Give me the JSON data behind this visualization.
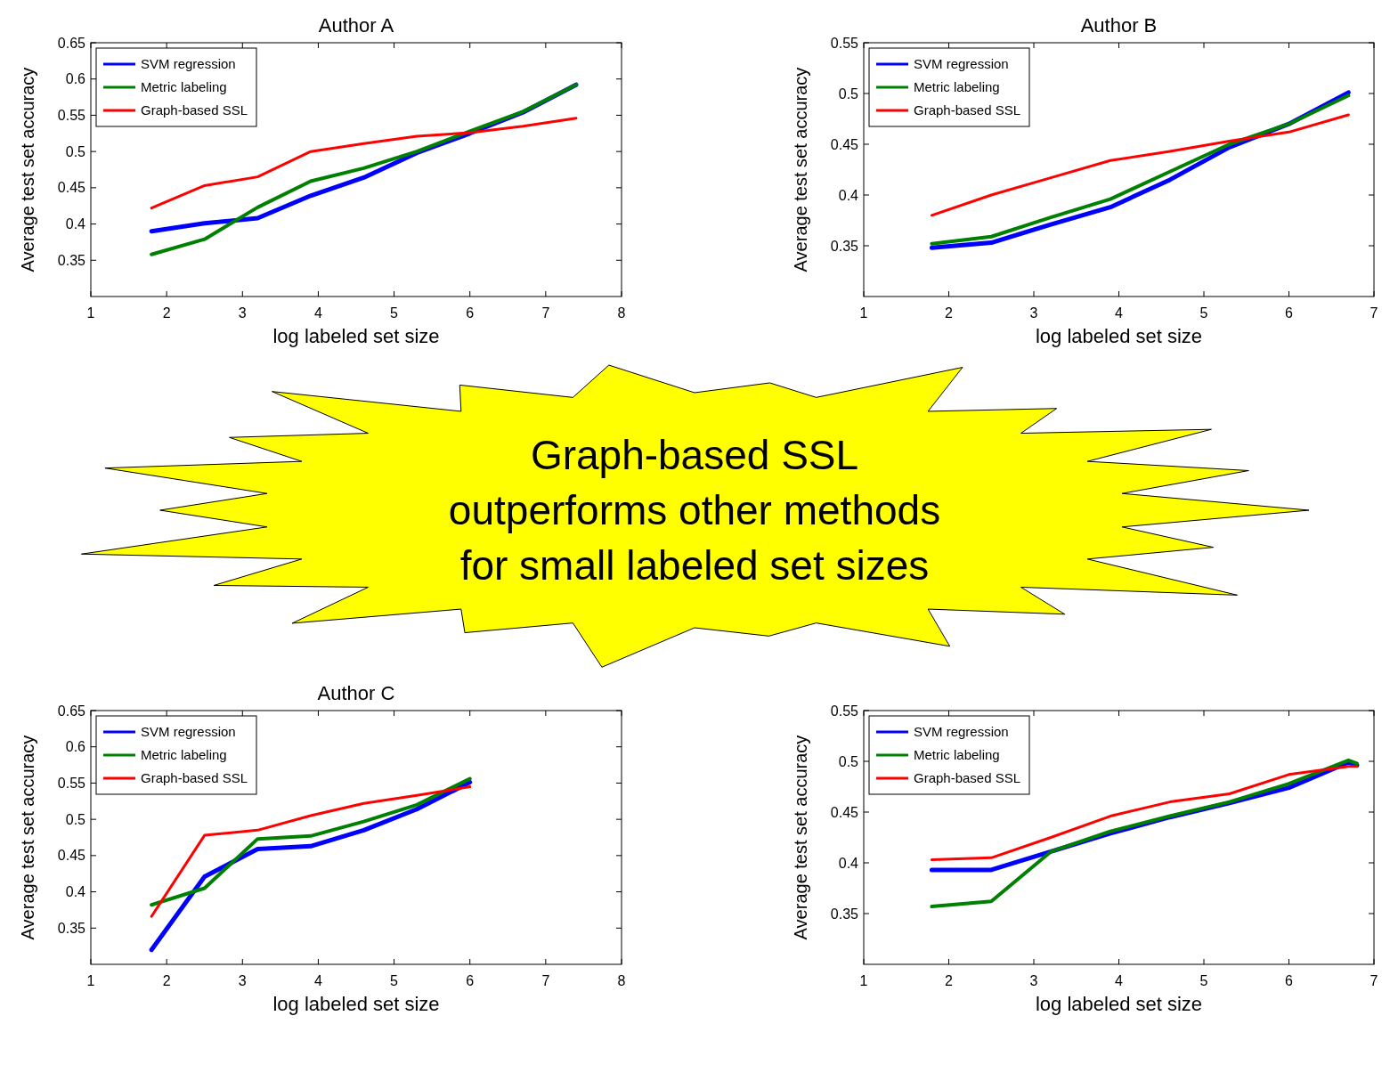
{
  "chart_data": [
    {
      "type": "line",
      "title": "Author A",
      "xlabel": "log labeled set size",
      "ylabel": "Average test set accuracy",
      "x": [
        1.8,
        2.5,
        3.2,
        3.9,
        4.6,
        5.3,
        6.0,
        6.7,
        7.4
      ],
      "xlim": [
        1,
        8
      ],
      "xticks": [
        1,
        2,
        3,
        4,
        5,
        6,
        7,
        8
      ],
      "ylim": [
        0.3,
        0.65
      ],
      "yticks": [
        0.35,
        0.4,
        0.45,
        0.5,
        0.55,
        0.6,
        0.65
      ],
      "legend": "top left",
      "series": [
        {
          "name": "SVM regression",
          "color": "#0000ff",
          "values": [
            0.39,
            0.401,
            0.408,
            0.439,
            0.464,
            0.498,
            0.525,
            0.554,
            0.592
          ]
        },
        {
          "name": "Metric labeling",
          "color": "#008000",
          "values": [
            0.358,
            0.379,
            0.423,
            0.459,
            0.477,
            0.5,
            0.528,
            0.555,
            0.592
          ]
        },
        {
          "name": "Graph-based SSL",
          "color": "#ff0000",
          "values": [
            0.422,
            0.453,
            0.465,
            0.5,
            0.511,
            0.521,
            0.526,
            0.535,
            0.546
          ]
        }
      ]
    },
    {
      "type": "line",
      "title": "Author B",
      "xlabel": "log labeled set size",
      "ylabel": "Average test set accuracy",
      "x": [
        1.8,
        2.5,
        3.2,
        3.9,
        4.6,
        5.3,
        6.0,
        6.7
      ],
      "xlim": [
        1,
        7
      ],
      "xticks": [
        1,
        2,
        3,
        4,
        5,
        6,
        7
      ],
      "ylim": [
        0.3,
        0.55
      ],
      "yticks": [
        0.35,
        0.4,
        0.45,
        0.5,
        0.55
      ],
      "legend": "top left",
      "series": [
        {
          "name": "SVM regression",
          "color": "#0000ff",
          "values": [
            0.348,
            0.353,
            0.371,
            0.388,
            0.415,
            0.447,
            0.47,
            0.501
          ]
        },
        {
          "name": "Metric labeling",
          "color": "#008000",
          "values": [
            0.352,
            0.359,
            0.378,
            0.396,
            0.423,
            0.45,
            0.47,
            0.498
          ]
        },
        {
          "name": "Graph-based SSL",
          "color": "#ff0000",
          "values": [
            0.38,
            0.4,
            0.417,
            0.434,
            0.443,
            0.453,
            0.462,
            0.479
          ]
        }
      ]
    },
    {
      "type": "line",
      "title": "Author C",
      "xlabel": "log labeled set size",
      "ylabel": "Average test set accuracy",
      "x": [
        1.8,
        2.5,
        3.2,
        3.9,
        4.6,
        5.3,
        6.0
      ],
      "xlim": [
        1,
        8
      ],
      "xticks": [
        1,
        2,
        3,
        4,
        5,
        6,
        7,
        8
      ],
      "ylim": [
        0.3,
        0.65
      ],
      "yticks": [
        0.35,
        0.4,
        0.45,
        0.5,
        0.55,
        0.6,
        0.65
      ],
      "legend": "top left",
      "series": [
        {
          "name": "SVM regression",
          "color": "#0000ff",
          "values": [
            0.32,
            0.421,
            0.459,
            0.463,
            0.485,
            0.514,
            0.551
          ]
        },
        {
          "name": "Metric labeling",
          "color": "#008000",
          "values": [
            0.382,
            0.405,
            0.473,
            0.477,
            0.497,
            0.52,
            0.556
          ]
        },
        {
          "name": "Graph-based SSL",
          "color": "#ff0000",
          "values": [
            0.366,
            0.478,
            0.485,
            0.505,
            0.522,
            0.533,
            0.545
          ]
        }
      ]
    },
    {
      "type": "line",
      "xlabel": "log labeled set size",
      "ylabel": "Average test set accuracy",
      "x": [
        1.8,
        2.5,
        3.2,
        3.9,
        4.6,
        5.3,
        6.0,
        6.7,
        6.8
      ],
      "xlim": [
        1,
        7
      ],
      "xticks": [
        1,
        2,
        3,
        4,
        5,
        6,
        7
      ],
      "ylim": [
        0.3,
        0.55
      ],
      "yticks": [
        0.35,
        0.4,
        0.45,
        0.5,
        0.55
      ],
      "legend": "top left",
      "series": [
        {
          "name": "SVM regression",
          "color": "#0000ff",
          "values": [
            0.393,
            0.393,
            0.411,
            0.429,
            0.445,
            0.459,
            0.474,
            0.499,
            0.496
          ]
        },
        {
          "name": "Metric labeling",
          "color": "#008000",
          "values": [
            0.357,
            0.362,
            0.411,
            0.431,
            0.446,
            0.46,
            0.478,
            0.501,
            0.498
          ]
        },
        {
          "name": "Graph-based SSL",
          "color": "#ff0000",
          "values": [
            0.403,
            0.405,
            0.425,
            0.446,
            0.46,
            0.468,
            0.487,
            0.495,
            0.495
          ]
        }
      ]
    },
    {
      "type": "other",
      "annotations": [
        "Graph-based SSL",
        "outperforms other methods",
        "for small labeled set sizes"
      ]
    }
  ]
}
